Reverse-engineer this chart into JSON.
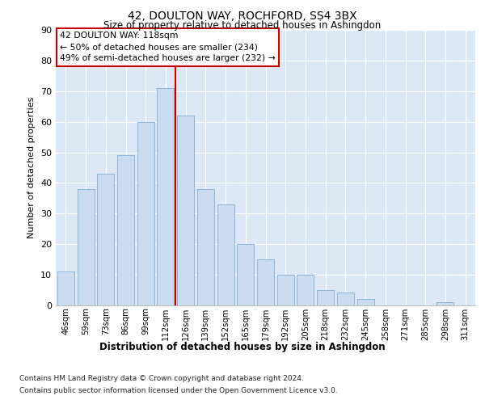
{
  "title": "42, DOULTON WAY, ROCHFORD, SS4 3BX",
  "subtitle": "Size of property relative to detached houses in Ashingdon",
  "xlabel": "Distribution of detached houses by size in Ashingdon",
  "ylabel": "Number of detached properties",
  "categories": [
    "46sqm",
    "59sqm",
    "73sqm",
    "86sqm",
    "99sqm",
    "112sqm",
    "126sqm",
    "139sqm",
    "152sqm",
    "165sqm",
    "179sqm",
    "192sqm",
    "205sqm",
    "218sqm",
    "232sqm",
    "245sqm",
    "258sqm",
    "271sqm",
    "285sqm",
    "298sqm",
    "311sqm"
  ],
  "values": [
    11,
    38,
    43,
    49,
    60,
    71,
    62,
    38,
    33,
    20,
    15,
    10,
    10,
    5,
    4,
    2,
    0,
    0,
    0,
    1,
    0
  ],
  "bar_color": "#c9dcf0",
  "bar_edge_color": "#8ab4d8",
  "vline_x_index": 5,
  "vline_color": "#cc0000",
  "annotation_title": "42 DOULTON WAY: 118sqm",
  "annotation_line1": "← 50% of detached houses are smaller (234)",
  "annotation_line2": "49% of semi-detached houses are larger (232) →",
  "annotation_box_facecolor": "#ffffff",
  "annotation_box_edgecolor": "#cc0000",
  "ylim": [
    0,
    90
  ],
  "yticks": [
    0,
    10,
    20,
    30,
    40,
    50,
    60,
    70,
    80,
    90
  ],
  "footer1": "Contains HM Land Registry data © Crown copyright and database right 2024.",
  "footer2": "Contains public sector information licensed under the Open Government Licence v3.0.",
  "fig_facecolor": "#ffffff",
  "plot_facecolor": "#dce8f5",
  "grid_color": "#ffffff",
  "spine_color": "#bbbbbb"
}
